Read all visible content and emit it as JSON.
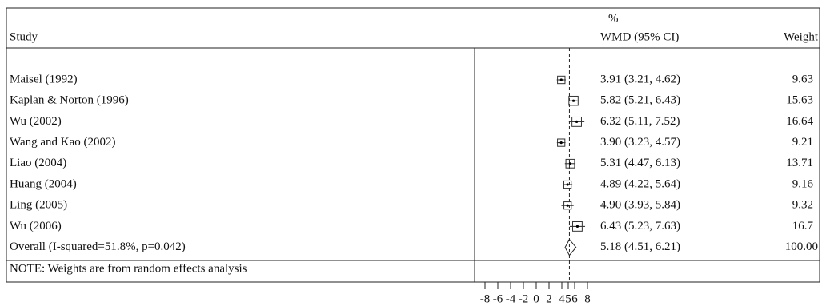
{
  "chart_data": {
    "type": "forest",
    "header_percent": "%",
    "header_study": "Study",
    "header_effect": "WMD (95% CI)",
    "header_weight": "Weight",
    "studies": [
      {
        "name": "Maisel (1992)",
        "estimate": 3.91,
        "lower": 3.21,
        "upper": 4.62,
        "ci_label": "3.91 (3.21, 4.62)",
        "weight": 9.63
      },
      {
        "name": "Kaplan & Norton (1996)",
        "estimate": 5.82,
        "lower": 5.21,
        "upper": 6.43,
        "ci_label": "5.82 (5.21, 6.43)",
        "weight": 15.63
      },
      {
        "name": "Wu (2002)",
        "estimate": 6.32,
        "lower": 5.11,
        "upper": 7.52,
        "ci_label": "6.32 (5.11, 7.52)",
        "weight": 16.64
      },
      {
        "name": "Wang and Kao (2002)",
        "estimate": 3.9,
        "lower": 3.23,
        "upper": 4.57,
        "ci_label": "3.90 (3.23, 4.57)",
        "weight": 9.21
      },
      {
        "name": "Liao (2004)",
        "estimate": 5.31,
        "lower": 4.47,
        "upper": 6.13,
        "ci_label": "5.31 (4.47, 6.13)",
        "weight": 13.71
      },
      {
        "name": "Huang (2004)",
        "estimate": 4.89,
        "lower": 4.22,
        "upper": 5.64,
        "ci_label": "4.89 (4.22, 5.64)",
        "weight": 9.16
      },
      {
        "name": "Ling (2005)",
        "estimate": 4.9,
        "lower": 3.93,
        "upper": 5.84,
        "ci_label": "4.90 (3.93, 5.84)",
        "weight": 9.32
      },
      {
        "name": "Wu (2006)",
        "estimate": 6.43,
        "lower": 5.23,
        "upper": 7.63,
        "ci_label": "6.43 (5.23, 7.63)",
        "weight": 16.7
      }
    ],
    "overall": {
      "name": "Overall (I-squared=51.8%, p=0.042)",
      "estimate": 5.18,
      "lower": 4.51,
      "upper": 6.21,
      "ci_label": "5.18 (4.51, 6.21)",
      "weight": 100,
      "weight_label": "100.00"
    },
    "note": "NOTE: Weights are from random effects analysis",
    "xlim": [
      -9,
      9
    ],
    "xticks": [
      -8,
      -6,
      -4,
      -2,
      0,
      2,
      4,
      5,
      6,
      8
    ]
  }
}
